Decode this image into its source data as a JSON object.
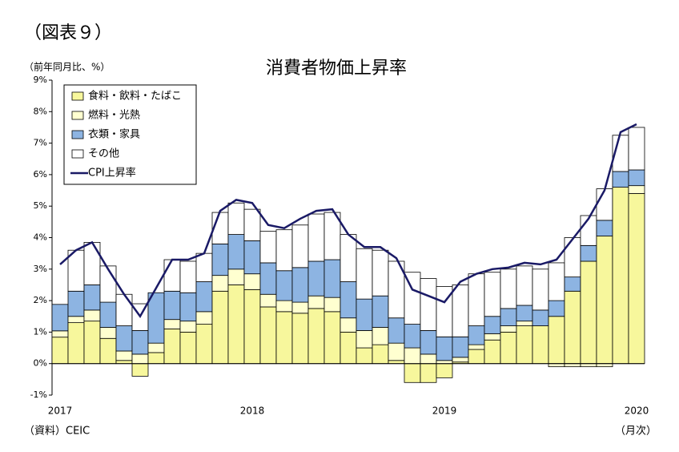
{
  "chart_data": {
    "type": "bar",
    "figure_label": "（図表９）",
    "title": "消費者物価上昇率",
    "y_label": "（前年同月比、%）",
    "x_label": "（月次）",
    "source": "（資料）CEIC",
    "stacked": true,
    "categories": [
      "2017",
      null,
      null,
      null,
      null,
      null,
      null,
      null,
      null,
      null,
      null,
      null,
      "2018",
      null,
      null,
      null,
      null,
      null,
      null,
      null,
      null,
      null,
      null,
      null,
      "2019",
      null,
      null,
      null,
      null,
      null,
      null,
      null,
      null,
      null,
      null,
      null,
      "2020"
    ],
    "series": [
      {
        "name": "食料・飲料・たばこ",
        "color": "#f7f79c",
        "values": [
          0.84,
          1.3,
          1.35,
          0.8,
          0.1,
          -0.4,
          0.35,
          1.1,
          1.0,
          1.25,
          2.3,
          2.5,
          2.35,
          1.8,
          1.65,
          1.6,
          1.75,
          1.65,
          1.0,
          0.5,
          0.6,
          0.1,
          -0.6,
          -0.6,
          -0.45,
          0.05,
          0.45,
          0.75,
          1.0,
          1.2,
          1.2,
          1.5,
          2.3,
          3.25,
          4.05,
          5.6,
          5.4
        ]
      },
      {
        "name": "燃料・光熱",
        "color": "#ffffd0",
        "values": [
          0.2,
          0.2,
          0.35,
          0.35,
          0.3,
          0.3,
          0.3,
          0.3,
          0.35,
          0.4,
          0.5,
          0.5,
          0.5,
          0.4,
          0.35,
          0.35,
          0.4,
          0.45,
          0.45,
          0.55,
          0.55,
          0.55,
          0.5,
          0.3,
          0.1,
          0.15,
          0.15,
          0.2,
          0.2,
          0.15,
          0.0,
          -0.1,
          -0.1,
          -0.1,
          -0.1,
          0.0,
          0.25
        ]
      },
      {
        "name": "衣類・家具",
        "color": "#8db4e2",
        "values": [
          0.84,
          0.8,
          0.8,
          0.8,
          0.8,
          0.75,
          1.6,
          0.9,
          0.9,
          0.95,
          1.0,
          1.1,
          1.05,
          1.0,
          0.95,
          1.1,
          1.1,
          1.2,
          1.15,
          1.0,
          1.0,
          0.8,
          0.75,
          0.75,
          0.75,
          0.65,
          0.6,
          0.55,
          0.55,
          0.5,
          0.5,
          0.5,
          0.45,
          0.5,
          0.5,
          0.5,
          0.5
        ]
      },
      {
        "name": "その他",
        "color": "#ffffff",
        "values": [
          0.0,
          1.3,
          1.35,
          1.15,
          1.0,
          0.85,
          0.0,
          1.0,
          1.0,
          0.9,
          1.0,
          1.0,
          1.0,
          1.0,
          1.3,
          1.35,
          1.5,
          1.5,
          1.5,
          1.6,
          1.45,
          1.8,
          1.65,
          1.65,
          1.6,
          1.65,
          1.65,
          1.4,
          1.25,
          1.25,
          1.3,
          1.2,
          1.25,
          0.95,
          1.0,
          1.15,
          1.35
        ]
      },
      {
        "name": "CPI上昇率",
        "type": "line",
        "color": "#1a1a66",
        "values": [
          3.15,
          3.6,
          3.85,
          3.0,
          2.2,
          1.5,
          2.4,
          3.3,
          3.3,
          3.5,
          4.85,
          5.2,
          5.1,
          4.4,
          4.3,
          4.6,
          4.85,
          4.9,
          4.1,
          3.7,
          3.7,
          3.35,
          2.35,
          2.15,
          1.95,
          2.6,
          2.85,
          3.0,
          3.05,
          3.2,
          3.15,
          3.3,
          3.95,
          4.6,
          5.5,
          7.35,
          7.6
        ]
      }
    ],
    "ylim": [
      -1,
      9
    ],
    "yticks": [
      {
        "value": -1,
        "label": "-1%"
      },
      {
        "value": 0,
        "label": "0%"
      },
      {
        "value": 1,
        "label": "1%"
      },
      {
        "value": 2,
        "label": "2%"
      },
      {
        "value": 3,
        "label": "3%"
      },
      {
        "value": 4,
        "label": "4%"
      },
      {
        "value": 5,
        "label": "5%"
      },
      {
        "value": 6,
        "label": "6%"
      },
      {
        "value": 7,
        "label": "7%"
      },
      {
        "value": 8,
        "label": "8%"
      },
      {
        "value": 9,
        "label": "9%"
      }
    ],
    "legend": "upper left"
  }
}
